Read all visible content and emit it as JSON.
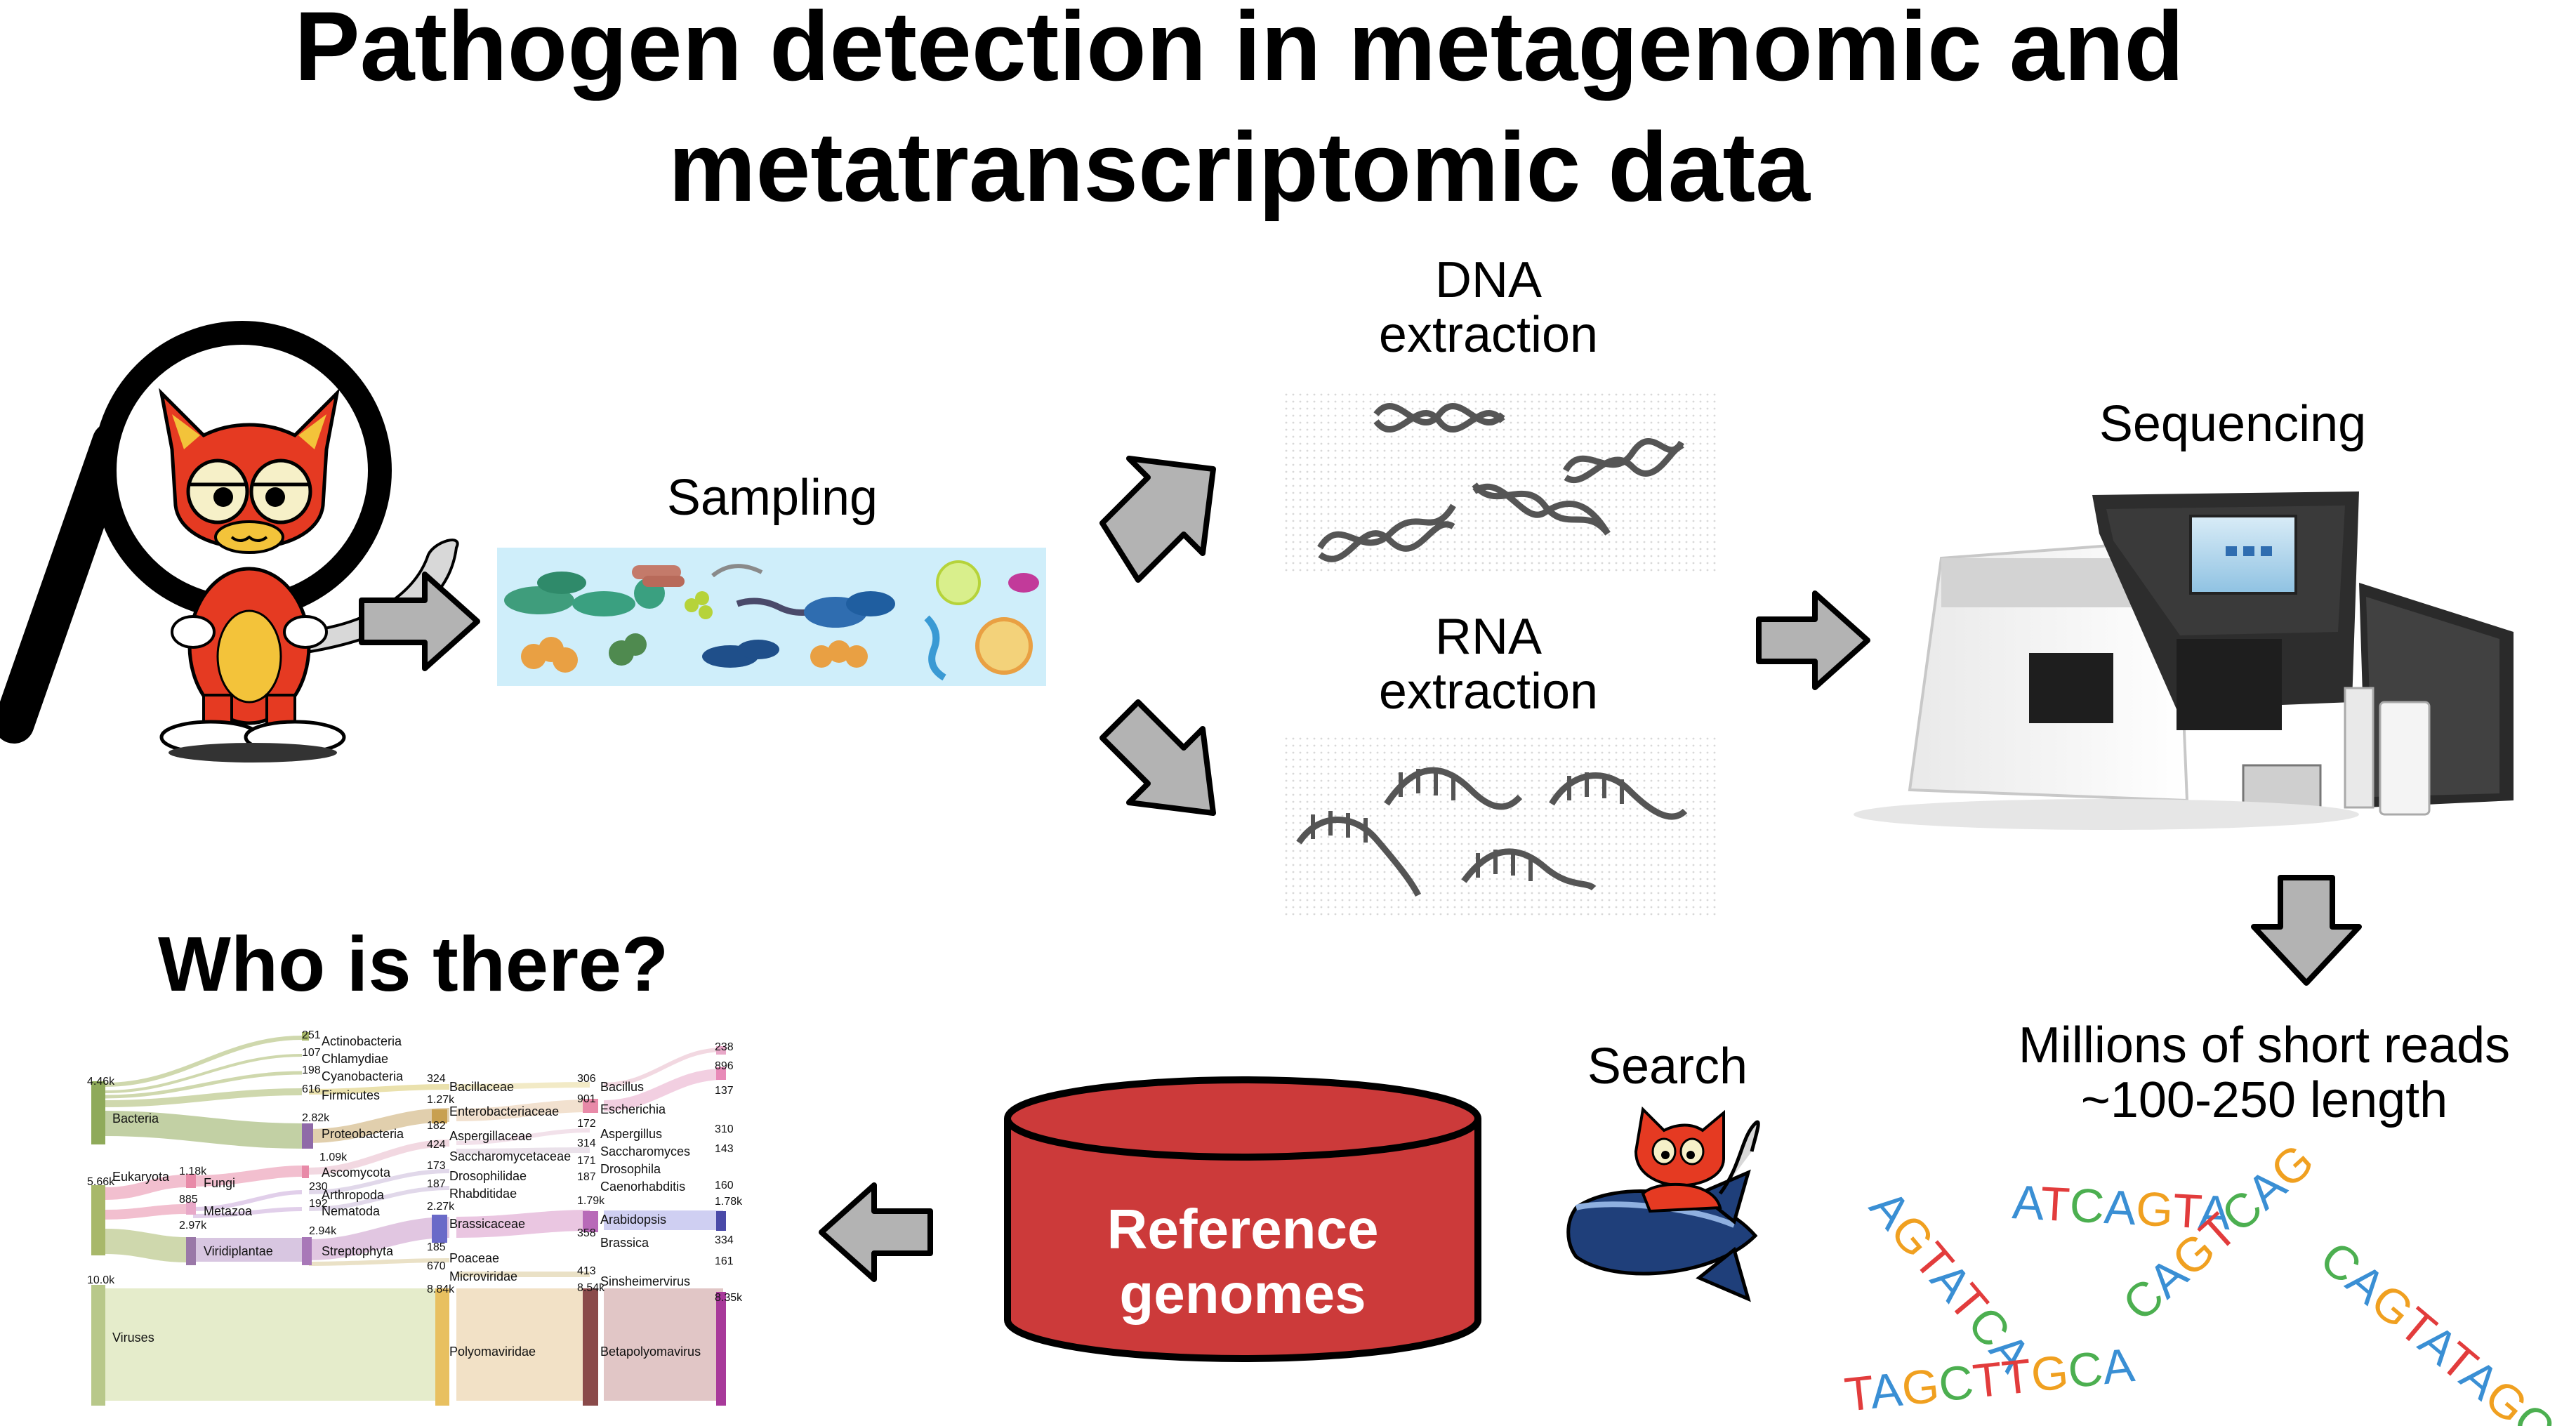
{
  "title_line1": "Pathogen detection in metagenomic and",
  "title_line2": "metatranscriptomic data",
  "steps": {
    "sampling": "Sampling",
    "dna_extraction_1": "DNA",
    "dna_extraction_2": "extraction",
    "rna_extraction_1": "RNA",
    "rna_extraction_2": "extraction",
    "sequencing": "Sequencing",
    "reads_1": "Millions of short reads",
    "reads_2": "~100-250 length",
    "search": "Search",
    "reference_1": "Reference",
    "reference_2": "genomes",
    "who": "Who is there?"
  },
  "read_sequences": [
    "AGTATCA",
    "ATCAGTA",
    "CAGTCAG",
    "CAGTATAGC",
    "TAGCTTGCA"
  ],
  "colors": {
    "accent_red": "#cc3a3a",
    "arrow_fill": "#b3b3b3",
    "letter_a": "#3a8fd4",
    "letter_t": "#e23c3c",
    "letter_g": "#f0a020",
    "letter_c": "#4caf50"
  },
  "sankey": {
    "level0": [
      {
        "name": "Bacteria",
        "count": "4.46k"
      },
      {
        "name": "Eukaryota",
        "count": "5.66k"
      },
      {
        "name": "Viruses",
        "count": "10.0k"
      }
    ],
    "level1": [
      {
        "name": "Actinobacteria",
        "count": "251"
      },
      {
        "name": "Chlamydiae",
        "count": "107"
      },
      {
        "name": "Cyanobacteria",
        "count": "198"
      },
      {
        "name": "Firmicutes",
        "count": "616"
      },
      {
        "name": "Proteobacteria",
        "count": "2.82k"
      },
      {
        "name": "Fungi",
        "count": "1.18k"
      },
      {
        "name": "Metazoa",
        "count": "885"
      },
      {
        "name": "Viridiplantae",
        "count": "2.97k"
      }
    ],
    "level2": [
      {
        "name": "Ascomycota",
        "count": "1.09k"
      },
      {
        "name": "Arthropoda",
        "count": "230"
      },
      {
        "name": "Nematoda",
        "count": "192"
      },
      {
        "name": "Streptophyta",
        "count": "2.94k"
      }
    ],
    "level3": [
      {
        "name": "Bacillaceae",
        "count": "324"
      },
      {
        "name": "Enterobacteriaceae",
        "count": "1.27k"
      },
      {
        "name": "Aspergillaceae",
        "count": "182"
      },
      {
        "name": "Saccharomycetaceae",
        "count": "424"
      },
      {
        "name": "Drosophilidae",
        "count": "173"
      },
      {
        "name": "Rhabditidae",
        "count": "187"
      },
      {
        "name": "Brassicaceae",
        "count": "2.27k"
      },
      {
        "name": "Poaceae",
        "count": "185"
      },
      {
        "name": "Microviridae",
        "count": "670"
      },
      {
        "name": "Polyomaviridae",
        "count": "8.84k"
      }
    ],
    "level4": [
      {
        "name": "Bacillus",
        "count": "306"
      },
      {
        "name": "Escherichia",
        "count": "901"
      },
      {
        "name": "Aspergillus",
        "count": "172"
      },
      {
        "name": "Saccharomyces",
        "count": "314"
      },
      {
        "name": "Drosophila",
        "count": "171"
      },
      {
        "name": "Caenorhabditis",
        "count": "187"
      },
      {
        "name": "Arabidopsis",
        "count": "1.79k"
      },
      {
        "name": "Brassica",
        "count": "358"
      },
      {
        "name": "Sinsheimervirus",
        "count": "413"
      },
      {
        "name": "Betapolyomavirus",
        "count": "8.54k"
      }
    ],
    "level5_counts": [
      "238",
      "896",
      "137",
      "310",
      "143",
      "160",
      "1.78k",
      "334",
      "161",
      "8.35k"
    ]
  }
}
